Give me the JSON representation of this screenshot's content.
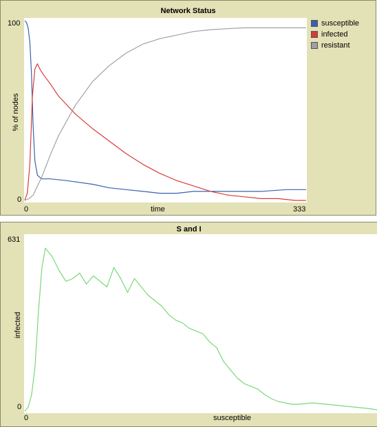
{
  "network_status": {
    "title": "Network Status",
    "ylabel": "% of nodes",
    "xlabel": "time",
    "y_max_label": "100",
    "y_min_label": "0",
    "x_min_label": "0",
    "x_max_label": "333",
    "legend": [
      {
        "name": "susceptible",
        "color": "#3a5fb0"
      },
      {
        "name": "infected",
        "color": "#d83a3a"
      },
      {
        "name": "resistant",
        "color": "#a0a0a0"
      }
    ]
  },
  "s_and_i": {
    "title": "S and I",
    "ylabel": "infected",
    "xlabel": "susceptible",
    "y_max_label": "631",
    "y_min_label": "0",
    "x_min_label": "0",
    "color": "#79d879"
  },
  "chart_data": [
    {
      "type": "line",
      "title": "Network Status",
      "xlabel": "time",
      "ylabel": "% of nodes",
      "xlim": [
        0,
        333
      ],
      "ylim": [
        0,
        100
      ],
      "series": [
        {
          "name": "susceptible",
          "color": "#3a5fb0",
          "x": [
            0,
            2,
            4,
            6,
            8,
            10,
            12,
            15,
            20,
            30,
            50,
            80,
            100,
            120,
            140,
            160,
            180,
            200,
            220,
            250,
            280,
            310,
            333
          ],
          "y": [
            100,
            99,
            96,
            88,
            70,
            40,
            22,
            14,
            12,
            12,
            11,
            9,
            7,
            6,
            5,
            4,
            4,
            5,
            5,
            5,
            5,
            6,
            6
          ]
        },
        {
          "name": "infected",
          "color": "#d83a3a",
          "x": [
            0,
            3,
            6,
            9,
            12,
            15,
            18,
            22,
            30,
            40,
            60,
            80,
            100,
            120,
            140,
            160,
            180,
            200,
            220,
            240,
            260,
            280,
            300,
            320,
            333
          ],
          "y": [
            0,
            4,
            20,
            58,
            73,
            76,
            73,
            70,
            65,
            58,
            48,
            40,
            33,
            26,
            20,
            15,
            11,
            8,
            5,
            3,
            2,
            1,
            1,
            0,
            0
          ]
        },
        {
          "name": "resistant",
          "color": "#a0a0a0",
          "x": [
            0,
            5,
            10,
            15,
            20,
            30,
            40,
            60,
            80,
            100,
            120,
            140,
            160,
            180,
            200,
            220,
            240,
            260,
            280,
            300,
            320,
            333
          ],
          "y": [
            0,
            1,
            3,
            8,
            13,
            25,
            36,
            53,
            66,
            75,
            82,
            87,
            90,
            92,
            94,
            95,
            95.5,
            96,
            96,
            96,
            96,
            96
          ]
        }
      ]
    },
    {
      "type": "line",
      "title": "S and I",
      "xlabel": "susceptible",
      "ylabel": "infected",
      "ylim": [
        0,
        631
      ],
      "series": [
        {
          "name": "",
          "color": "#79d879",
          "x": [
            0,
            5,
            10,
            15,
            20,
            25,
            30,
            40,
            50,
            60,
            70,
            80,
            90,
            100,
            110,
            120,
            130,
            140,
            150,
            160,
            170,
            180,
            190,
            200,
            210,
            220,
            230,
            240,
            250,
            260,
            270,
            280,
            290,
            300,
            310,
            320,
            330,
            340,
            350,
            360,
            370,
            380,
            390,
            400,
            420,
            440,
            460,
            480,
            500,
            514
          ],
          "y": [
            0,
            15,
            60,
            160,
            360,
            520,
            590,
            560,
            510,
            470,
            480,
            500,
            460,
            490,
            470,
            450,
            520,
            480,
            430,
            480,
            450,
            420,
            400,
            380,
            350,
            330,
            320,
            300,
            290,
            280,
            250,
            230,
            180,
            150,
            120,
            100,
            90,
            80,
            60,
            45,
            35,
            30,
            25,
            25,
            30,
            25,
            20,
            15,
            10,
            5
          ]
        }
      ]
    }
  ]
}
